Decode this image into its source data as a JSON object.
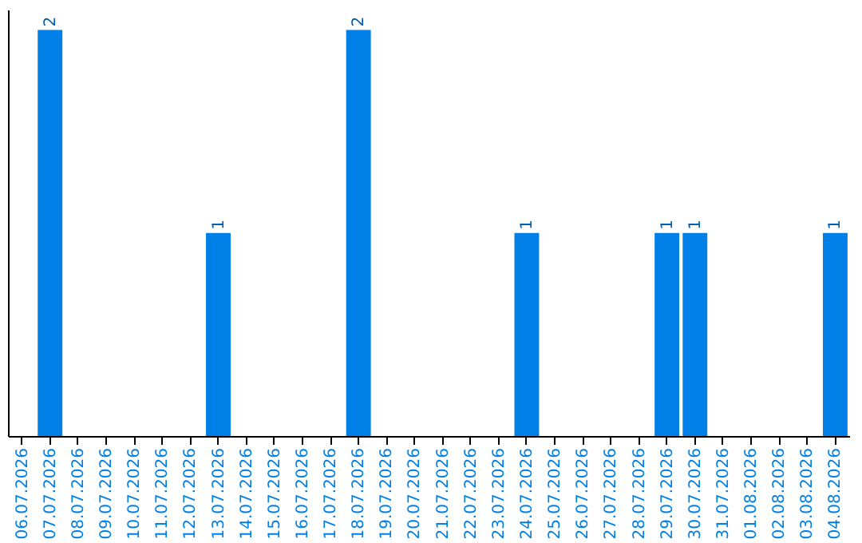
{
  "chart_data": {
    "type": "bar",
    "categories": [
      "06.07.2026",
      "07.07.2026",
      "08.07.2026",
      "09.07.2026",
      "10.07.2026",
      "11.07.2026",
      "12.07.2026",
      "13.07.2026",
      "14.07.2026",
      "15.07.2026",
      "16.07.2026",
      "17.07.2026",
      "18.07.2026",
      "19.07.2026",
      "20.07.2026",
      "21.07.2026",
      "22.07.2026",
      "23.07.2026",
      "24.07.2026",
      "25.07.2026",
      "26.07.2026",
      "27.07.2026",
      "28.07.2026",
      "29.07.2026",
      "30.07.2026",
      "31.07.2026",
      "01.08.2026",
      "02.08.2026",
      "03.08.2026",
      "04.08.2026"
    ],
    "values": [
      0,
      2,
      0,
      0,
      0,
      0,
      0,
      1,
      0,
      0,
      0,
      0,
      2,
      0,
      0,
      0,
      0,
      0,
      1,
      0,
      0,
      0,
      0,
      1,
      1,
      0,
      0,
      0,
      0,
      1
    ],
    "value_labels": [
      null,
      "2",
      null,
      null,
      null,
      null,
      null,
      "1",
      null,
      null,
      null,
      null,
      "2",
      null,
      null,
      null,
      null,
      null,
      "1",
      null,
      null,
      null,
      null,
      "1",
      "1",
      null,
      null,
      null,
      null,
      "1"
    ],
    "color": "#0080e6",
    "ylim": [
      0,
      2.1
    ],
    "tick_labels": "x",
    "grid": false
  }
}
